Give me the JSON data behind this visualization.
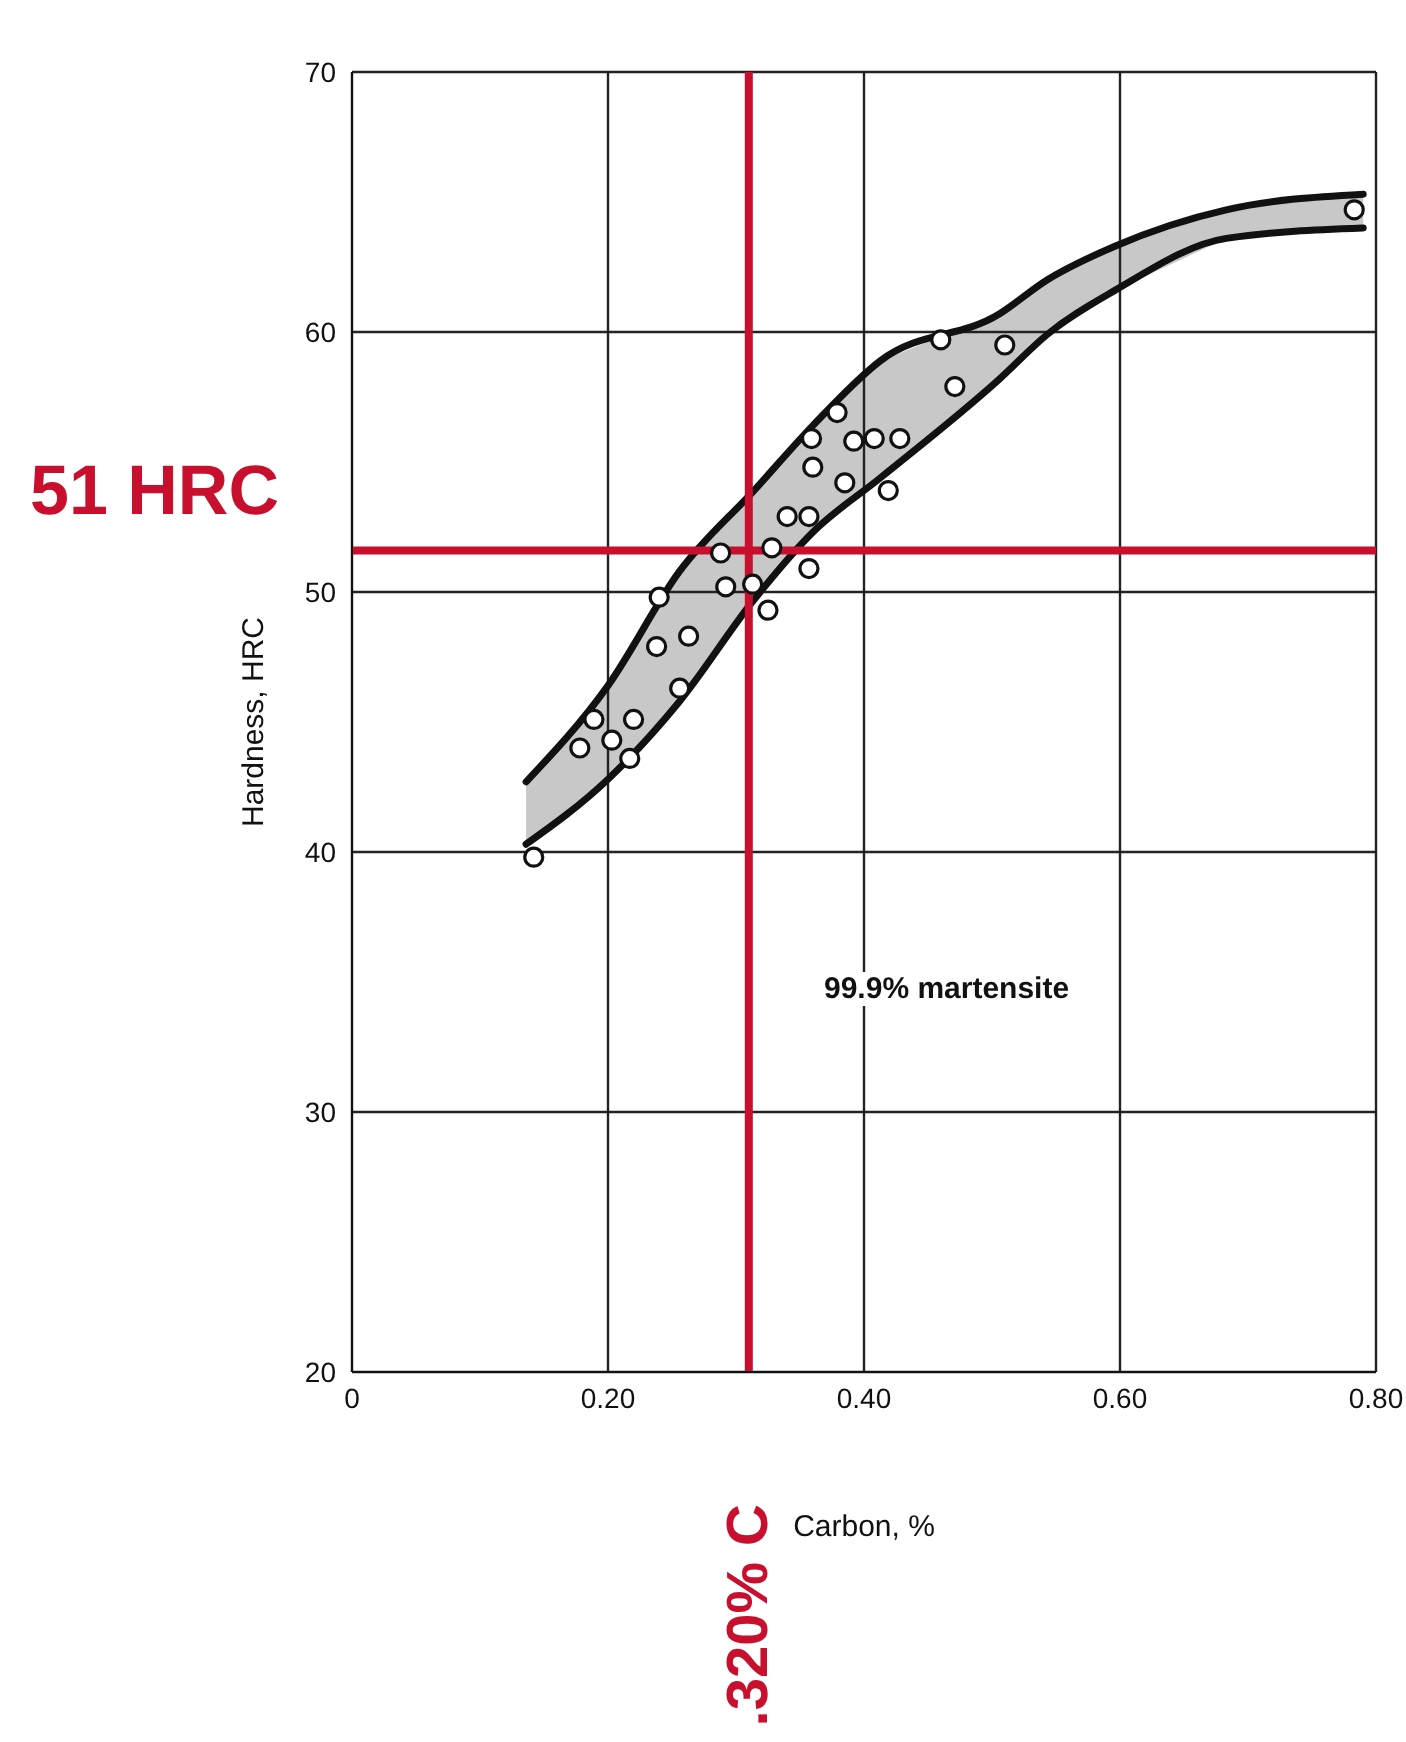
{
  "chart_data": {
    "type": "scatter",
    "xlabel": "Carbon, %",
    "ylabel": "Hardness, HRC",
    "xlim": [
      0,
      0.8
    ],
    "ylim": [
      20,
      70
    ],
    "xticks": [
      0,
      {
        "value": 0.2,
        "label": "0.20"
      },
      {
        "value": 0.4,
        "label": "0.40"
      },
      {
        "value": 0.6,
        "label": "0.60"
      },
      {
        "value": 0.8,
        "label": "0.80"
      }
    ],
    "yticks": [
      20,
      30,
      40,
      50,
      60,
      70
    ],
    "grid": true,
    "legend": false,
    "annotations": [
      "99.9% martensite"
    ],
    "ref_lines": [
      {
        "axis": "x",
        "value": 0.31,
        "label": ".320% C",
        "color": "#c8102e"
      },
      {
        "axis": "y",
        "value": 51.6,
        "label": "51 HRC",
        "color": "#c8102e"
      }
    ],
    "series": [
      {
        "color": "#ffffff",
        "marker": "circle",
        "x": [
          0.142,
          0.178,
          0.189,
          0.203,
          0.22,
          0.217,
          0.256,
          0.238,
          0.263,
          0.24,
          0.292,
          0.288,
          0.313,
          0.325,
          0.328,
          0.357,
          0.34,
          0.357,
          0.36,
          0.359,
          0.385,
          0.379,
          0.392,
          0.408,
          0.428,
          0.419,
          0.471,
          0.46,
          0.51,
          0.783
        ],
        "values": [
          39.8,
          44.0,
          45.1,
          44.3,
          45.1,
          43.6,
          46.3,
          47.9,
          48.3,
          49.8,
          50.2,
          51.5,
          50.3,
          49.3,
          51.7,
          50.9,
          52.9,
          52.9,
          54.8,
          55.9,
          54.2,
          56.9,
          55.8,
          55.9,
          55.9,
          53.9,
          57.9,
          59.7,
          59.5,
          64.7
        ]
      },
      {
        "type": "line",
        "color": "#111111",
        "marker": "none",
        "x": [
          0.136,
          0.2,
          0.256,
          0.314,
          0.36,
          0.413,
          0.506,
          0.543,
          0.596,
          0.683,
          0.79
        ],
        "values": [
          42.7,
          46.4,
          50.8,
          53.9,
          56.4,
          58.9,
          60.7,
          62.0,
          63.3,
          64.7,
          65.3
        ]
      },
      {
        "type": "line",
        "color": "#111111",
        "marker": "none",
        "x": [
          0.136,
          0.2,
          0.256,
          0.314,
          0.36,
          0.413,
          0.506,
          0.543,
          0.596,
          0.683,
          0.79
        ],
        "values": [
          40.3,
          42.8,
          45.8,
          49.7,
          52.3,
          54.4,
          58.2,
          59.9,
          61.6,
          63.6,
          64.0
        ]
      }
    ]
  }
}
